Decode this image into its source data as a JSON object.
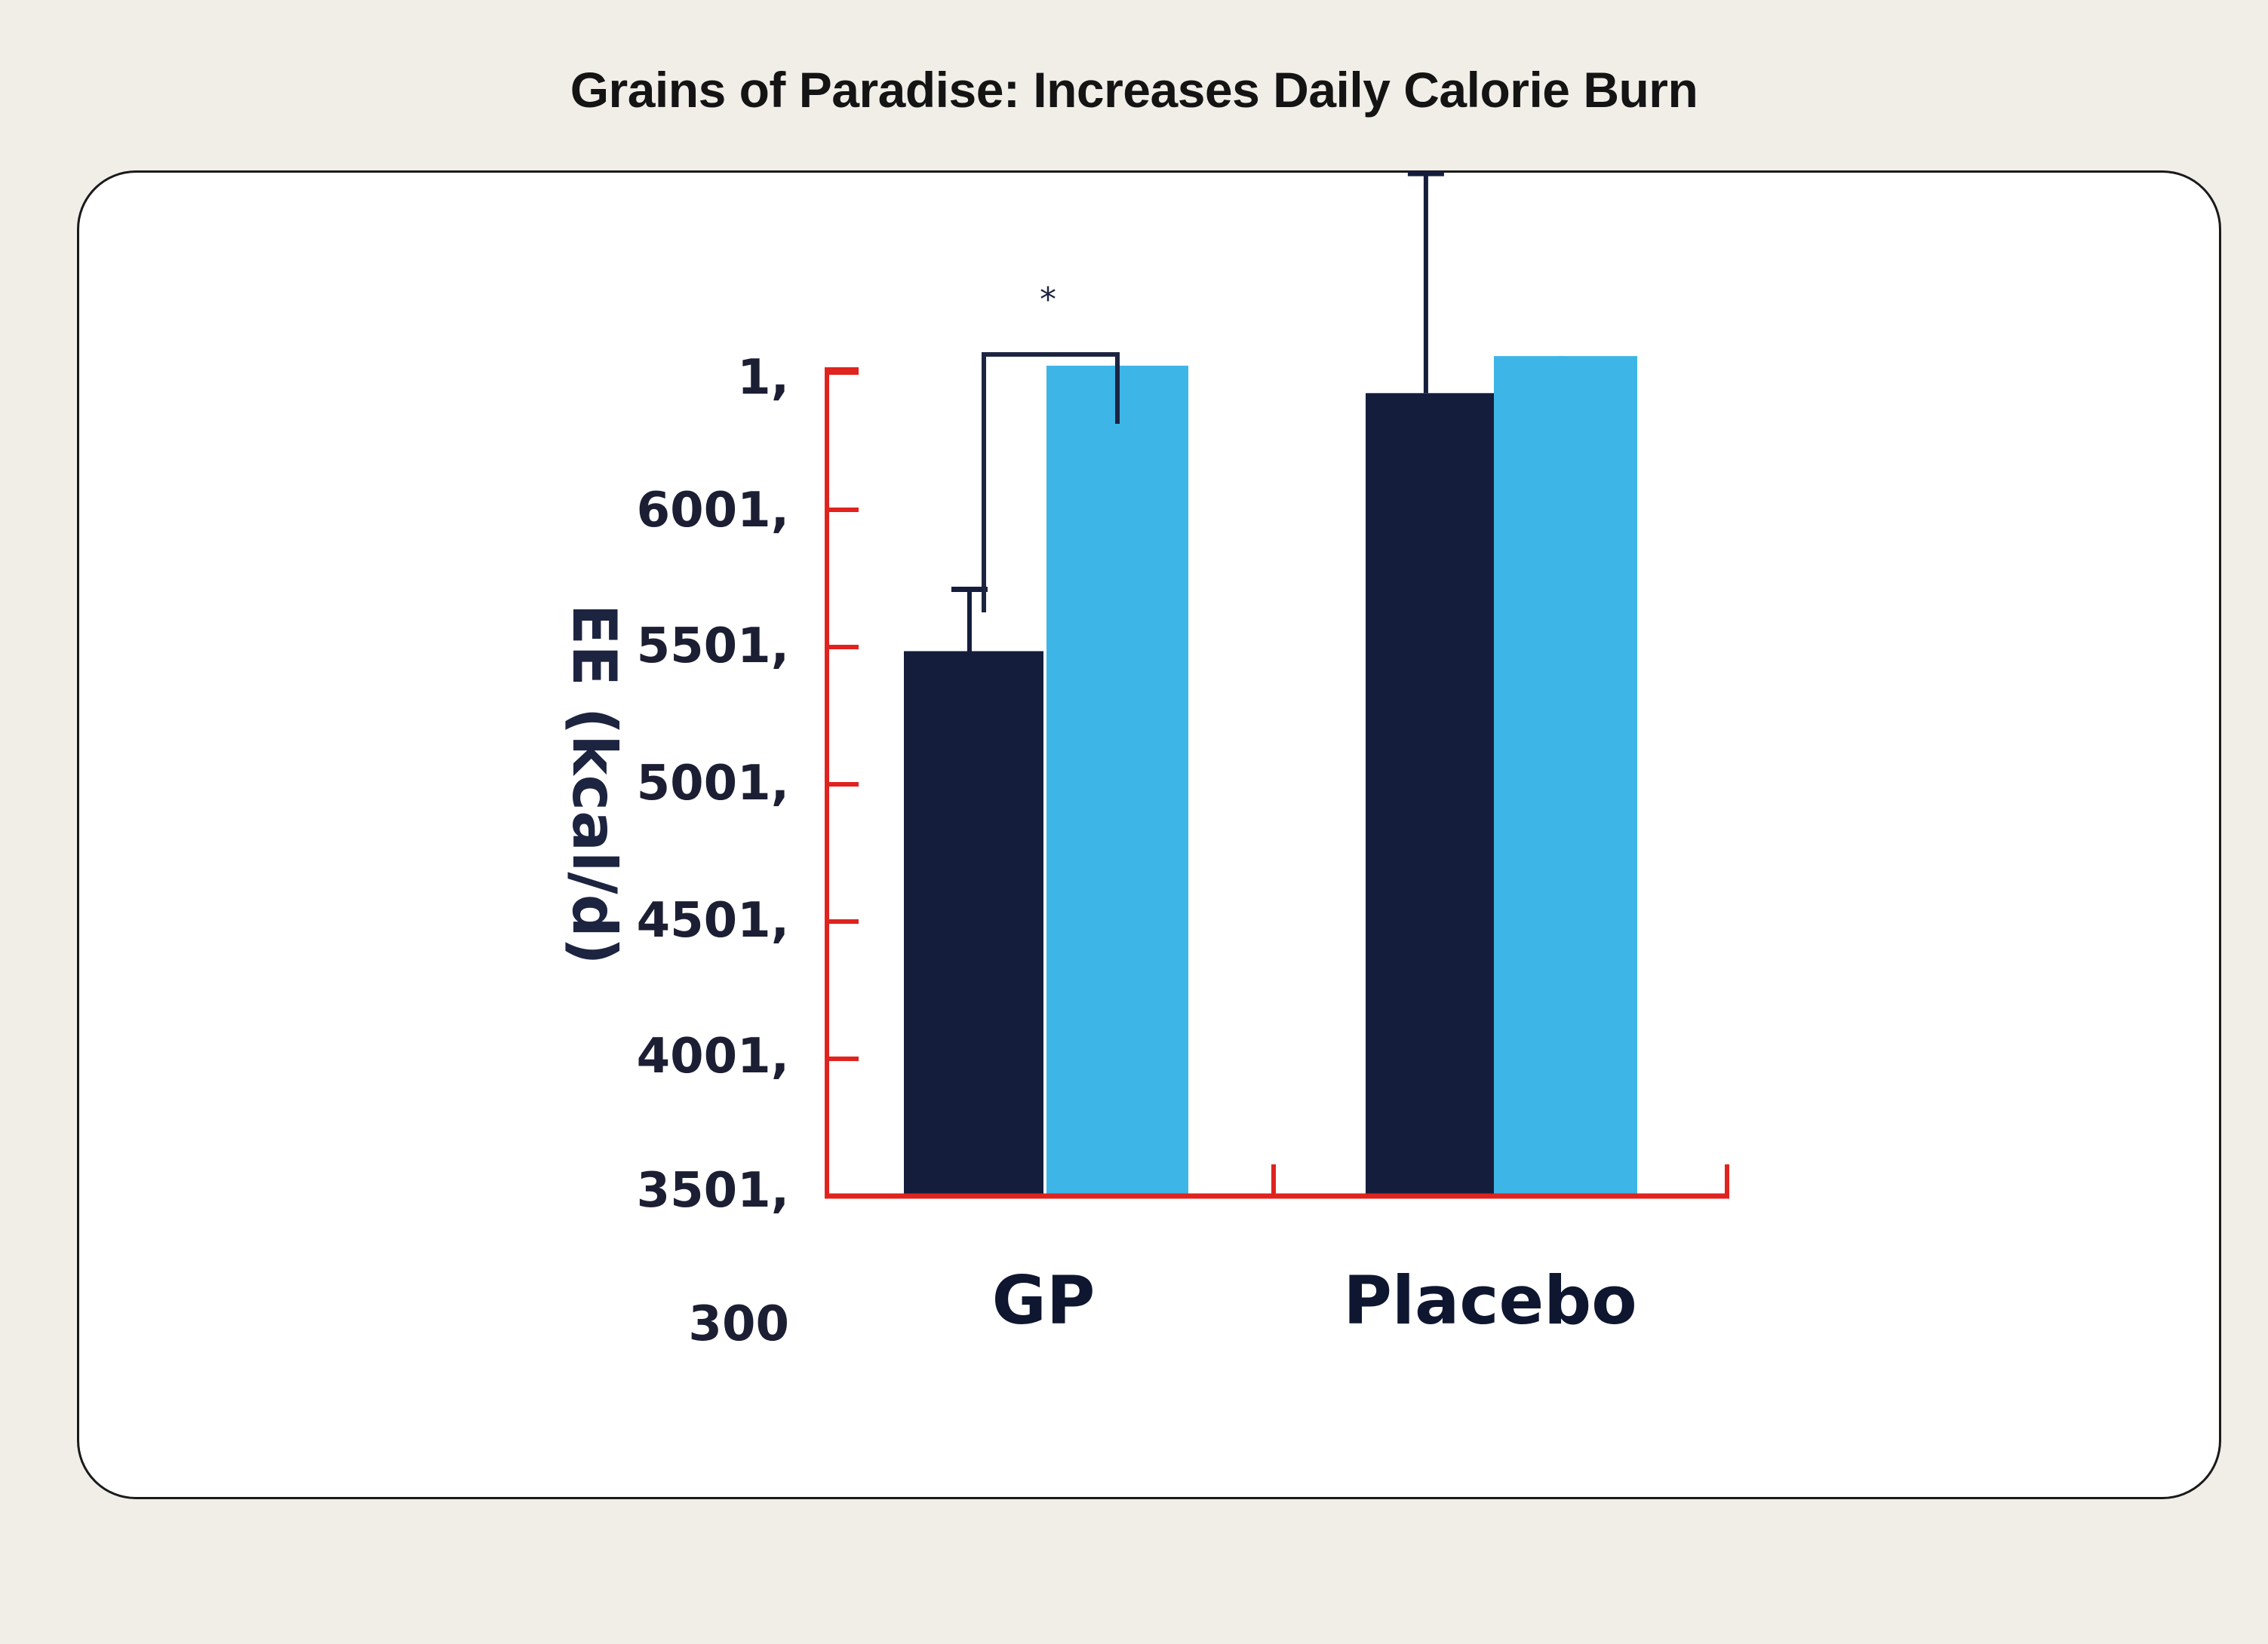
{
  "title": "Grains of Paradise: Increases Daily Calorie Burn",
  "chart_data": {
    "type": "bar",
    "ylabel": "EE (kcal/d)",
    "xlabel": "",
    "y_tick_labels": [
      "300",
      "3501,",
      "4001,",
      "4501,",
      "5001,",
      "5501,",
      "6001,",
      "1,"
    ],
    "ylim_index": [
      0,
      7
    ],
    "categories": [
      "GP",
      "Placebo"
    ],
    "series": [
      {
        "values": [
          3.97,
          5.85
        ],
        "error_upper": [
          4.42,
          7.45
        ]
      },
      {
        "values": [
          6.05,
          6.12
        ],
        "error_upper": [
          5.2,
          5.63
        ]
      }
    ],
    "significance": {
      "category": "GP",
      "label": "*"
    },
    "grid": false,
    "legend": "none",
    "colors": {
      "series_dark": "#141d3b",
      "series_light": "#3db5e7",
      "axis": "#e0231e",
      "bracket": "#1c2440"
    }
  }
}
